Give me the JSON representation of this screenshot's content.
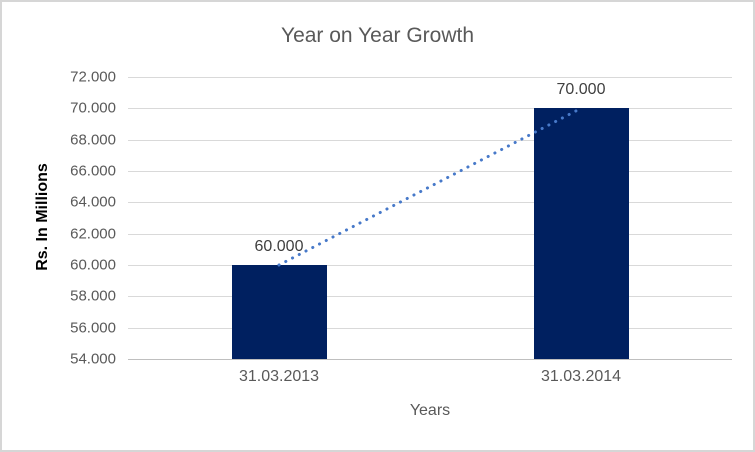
{
  "chart_data": {
    "type": "bar",
    "title": "Year on Year Growth",
    "categories": [
      "31.03.2013",
      "31.03.2014"
    ],
    "values": [
      60000,
      70000
    ],
    "value_labels": [
      "60.000",
      "70.000"
    ],
    "series": [
      {
        "name": "Rs. In Millions",
        "values": [
          60000,
          70000
        ]
      }
    ],
    "xlabel": "Years",
    "ylabel": "Rs. In Millions",
    "ylim": [
      54000,
      72000
    ],
    "y_tick_values": [
      72000,
      70000,
      68000,
      66000,
      64000,
      62000,
      60000,
      58000,
      56000,
      54000
    ],
    "y_tick_labels": [
      "72.000",
      "70.000",
      "68.000",
      "66.000",
      "64.000",
      "62.000",
      "60.000",
      "58.000",
      "56.000",
      "54.000"
    ],
    "grid": true,
    "legend": "none",
    "trendline": {
      "type": "linear",
      "style": "dotted",
      "connects": [
        60000,
        70000
      ]
    },
    "colors": {
      "bar_fill": "#002060",
      "trendline": "#4779c9",
      "gridline": "#d9d9d9",
      "axis_line": "#bfbfbf",
      "title_text": "#595959",
      "tick_text": "#595959",
      "data_label_text": "#404040",
      "axis_title_text": "#000000",
      "chart_border": "#d6d6d6",
      "background": "#ffffff"
    }
  }
}
